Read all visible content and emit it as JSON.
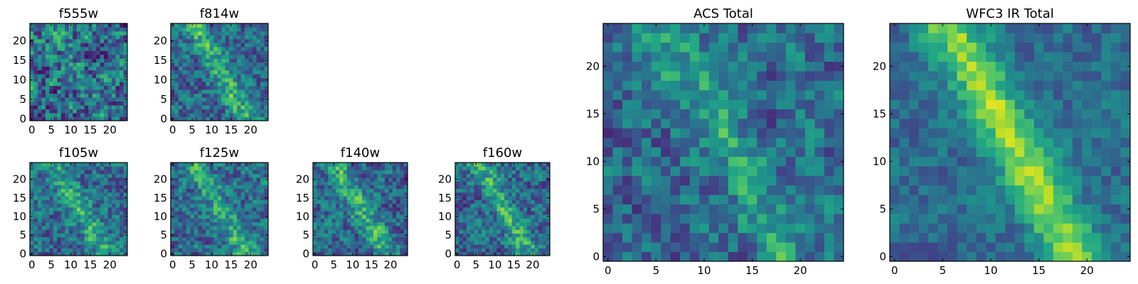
{
  "chart_data": [
    {
      "type": "heatmap",
      "title": "f555w",
      "xticks": [
        "0",
        "5",
        "10",
        "15",
        "20"
      ],
      "yticks": [
        "0",
        "5",
        "10",
        "15",
        "20"
      ],
      "extent": [
        0,
        25
      ],
      "colormap": "viridis",
      "grid_size": 25,
      "feature": "diagonal",
      "features": [],
      "feature_strength": 0.12,
      "noise": 0.95,
      "seed": 11
    },
    {
      "type": "heatmap",
      "title": "f814w",
      "xticks": [
        "0",
        "5",
        "10",
        "15",
        "20"
      ],
      "yticks": [
        "0",
        "5",
        "10",
        "15",
        "20"
      ],
      "extent": [
        0,
        25
      ],
      "colormap": "viridis",
      "grid_size": 25,
      "feature": "diagonal",
      "features": [],
      "feature_strength": 0.55,
      "noise": 0.7,
      "seed": 23
    },
    {
      "type": "heatmap",
      "title": "f105w",
      "xticks": [
        "0",
        "5",
        "10",
        "15",
        "20"
      ],
      "yticks": [
        "0",
        "5",
        "10",
        "15",
        "20"
      ],
      "extent": [
        0,
        25
      ],
      "colormap": "viridis",
      "grid_size": 25,
      "feature": "diagonal",
      "features": [],
      "feature_strength": 0.5,
      "noise": 0.7,
      "seed": 37
    },
    {
      "type": "heatmap",
      "title": "f125w",
      "xticks": [
        "0",
        "5",
        "10",
        "15",
        "20"
      ],
      "yticks": [
        "0",
        "5",
        "10",
        "15",
        "20"
      ],
      "extent": [
        0,
        25
      ],
      "colormap": "viridis",
      "grid_size": 25,
      "feature": "diagonal",
      "features": [],
      "feature_strength": 0.5,
      "noise": 0.7,
      "seed": 41
    },
    {
      "type": "heatmap",
      "title": "f140w",
      "xticks": [
        "0",
        "5",
        "10",
        "15",
        "20"
      ],
      "yticks": [
        "0",
        "5",
        "10",
        "15",
        "20"
      ],
      "extent": [
        0,
        25
      ],
      "colormap": "viridis",
      "grid_size": 25,
      "feature": "diagonal",
      "features": [],
      "feature_strength": 0.5,
      "noise": 0.7,
      "seed": 53
    },
    {
      "type": "heatmap",
      "title": "f160w",
      "xticks": [
        "0",
        "5",
        "10",
        "15",
        "20"
      ],
      "yticks": [
        "0",
        "5",
        "10",
        "15",
        "20"
      ],
      "extent": [
        0,
        25
      ],
      "colormap": "viridis",
      "grid_size": 25,
      "feature": "diagonal",
      "features": [],
      "feature_strength": 0.5,
      "noise": 0.7,
      "seed": 67
    },
    {
      "type": "heatmap",
      "title": "ACS Total",
      "xticks": [
        "0",
        "5",
        "10",
        "15",
        "20"
      ],
      "yticks": [
        "0",
        "5",
        "10",
        "15",
        "20"
      ],
      "extent": [
        0,
        25
      ],
      "colormap": "viridis",
      "grid_size": 25,
      "feature": "diagonal",
      "features": [],
      "feature_strength": 0.4,
      "noise": 0.65,
      "seed": 79
    },
    {
      "type": "heatmap",
      "title": "WFC3 IR Total",
      "xticks": [
        "0",
        "5",
        "10",
        "15",
        "20"
      ],
      "yticks": [
        "0",
        "5",
        "10",
        "15",
        "20"
      ],
      "extent": [
        0,
        25
      ],
      "colormap": "viridis",
      "grid_size": 25,
      "feature": "diagonal",
      "features": [],
      "feature_strength": 0.9,
      "noise": 0.4,
      "seed": 97
    }
  ]
}
